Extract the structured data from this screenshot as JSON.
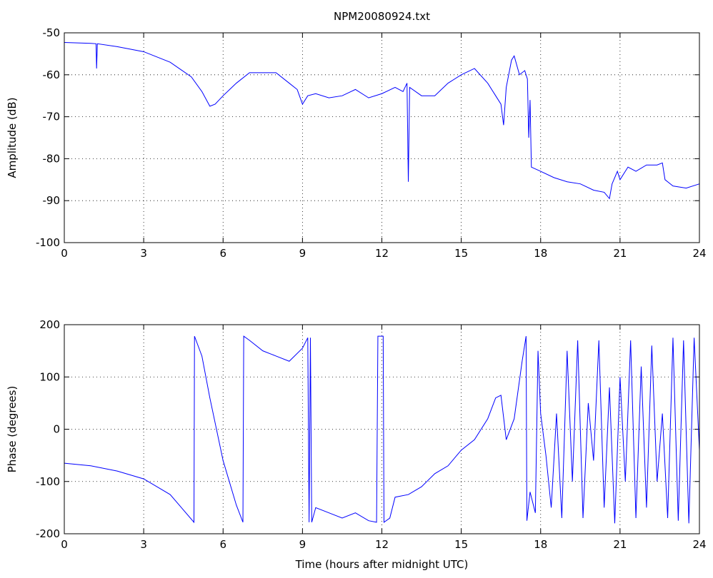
{
  "chart_data": [
    {
      "type": "line",
      "title": "NPM20080924.txt",
      "ylabel": "Amplitude (dB)",
      "xlim": [
        0,
        24
      ],
      "xticks": [
        0,
        3,
        6,
        9,
        12,
        15,
        18,
        21,
        24
      ],
      "ylim": [
        -100,
        -50
      ],
      "yticks": [
        -100,
        -90,
        -80,
        -70,
        -60,
        -50
      ],
      "grid": true,
      "x": [
        0,
        1,
        1.2,
        1.22,
        1.25,
        2,
        3,
        4,
        4.8,
        5.2,
        5.5,
        5.7,
        6,
        6.5,
        7,
        7.5,
        8,
        8.5,
        8.8,
        9,
        9.2,
        9.5,
        10,
        10.5,
        11,
        11.5,
        12,
        12.5,
        12.8,
        12.95,
        13,
        13.05,
        13.5,
        14,
        14.5,
        15,
        15.5,
        16,
        16.3,
        16.5,
        16.6,
        16.7,
        16.9,
        17,
        17.2,
        17.4,
        17.5,
        17.55,
        17.6,
        17.65,
        18,
        18.5,
        19,
        19.5,
        20,
        20.4,
        20.6,
        20.7,
        20.9,
        21,
        21.3,
        21.6,
        22,
        22.4,
        22.6,
        22.7,
        23,
        23.5,
        24
      ],
      "series": [
        {
          "color": "#0000ff",
          "values": [
            -52.3,
            -52.5,
            -52.6,
            -58.5,
            -52.6,
            -53.3,
            -54.5,
            -57,
            -60.5,
            -64,
            -67.5,
            -67,
            -65,
            -62,
            -59.5,
            -59.5,
            -59.5,
            -62,
            -63.5,
            -67,
            -65,
            -64.5,
            -65.5,
            -65,
            -63.5,
            -65.5,
            -64.5,
            -63,
            -64,
            -62,
            -85.5,
            -63,
            -65,
            -65,
            -62,
            -60,
            -58.5,
            -62,
            -65,
            -67,
            -72,
            -63,
            -56.5,
            -55.5,
            -60,
            -59,
            -61,
            -75,
            -66,
            -82,
            -83,
            -84.5,
            -85.5,
            -86,
            -87.5,
            -88,
            -89.5,
            -86,
            -83,
            -85,
            -82,
            -83,
            -81.5,
            -81.5,
            -81,
            -85,
            -86.5,
            -87,
            -86
          ]
        }
      ]
    },
    {
      "type": "line",
      "xlabel": "Time (hours after midnight UTC)",
      "ylabel": "Phase (degrees)",
      "xlim": [
        0,
        24
      ],
      "xticks": [
        0,
        3,
        6,
        9,
        12,
        15,
        18,
        21,
        24
      ],
      "ylim": [
        -200,
        200
      ],
      "yticks": [
        -200,
        -100,
        0,
        100,
        200
      ],
      "grid": true,
      "x": [
        0,
        1,
        2,
        3,
        4,
        4.9,
        4.92,
        5.2,
        5.5,
        6,
        6.5,
        6.75,
        6.78,
        7,
        7.5,
        8,
        8.5,
        9,
        9.2,
        9.25,
        9.3,
        9.35,
        9.5,
        10,
        10.5,
        11,
        11.5,
        11.8,
        11.85,
        12.05,
        12.08,
        12.3,
        12.5,
        13,
        13.5,
        14,
        14.5,
        15,
        15.5,
        16,
        16.3,
        16.5,
        16.7,
        17,
        17.3,
        17.45,
        17.48,
        17.6,
        17.8,
        17.9,
        18,
        18.2,
        18.4,
        18.6,
        18.8,
        19,
        19.2,
        19.4,
        19.6,
        19.8,
        20,
        20.2,
        20.4,
        20.6,
        20.8,
        21,
        21.2,
        21.4,
        21.6,
        21.8,
        22,
        22.2,
        22.4,
        22.6,
        22.8,
        23,
        23.2,
        23.4,
        23.6,
        23.8,
        24
      ],
      "series": [
        {
          "color": "#0000ff",
          "values": [
            -65,
            -70,
            -80,
            -95,
            -125,
            -178,
            178,
            140,
            60,
            -60,
            -145,
            -178,
            178,
            170,
            150,
            140,
            130,
            155,
            175,
            -178,
            175,
            -178,
            -150,
            -160,
            -170,
            -160,
            -175,
            -178,
            178,
            178,
            -178,
            -170,
            -130,
            -125,
            -110,
            -85,
            -70,
            -40,
            -20,
            20,
            60,
            65,
            -20,
            20,
            130,
            178,
            -175,
            -120,
            -160,
            150,
            30,
            -50,
            -150,
            30,
            -170,
            150,
            -100,
            170,
            -170,
            50,
            -60,
            170,
            -150,
            80,
            -180,
            100,
            -100,
            170,
            -170,
            120,
            -150,
            160,
            -100,
            30,
            -170,
            175,
            -175,
            170,
            -180,
            175,
            -40
          ]
        }
      ]
    }
  ]
}
